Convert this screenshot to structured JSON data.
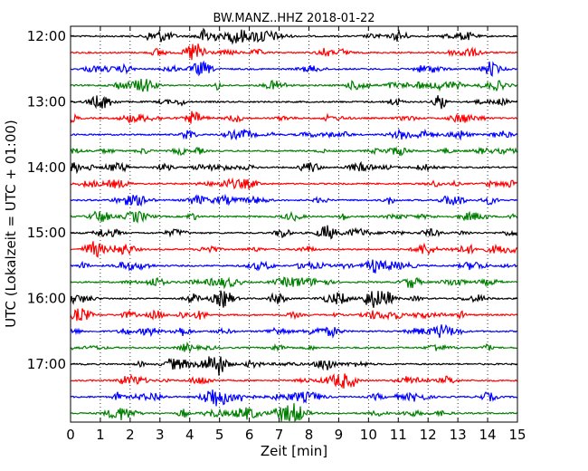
{
  "chart_data": {
    "type": "line",
    "title": "BW.MANZ..HHZ 2018-01-22",
    "xlabel": "Zeit  [min]",
    "ylabel": "UTC (Lokalzeit = UTC + 01:00)",
    "xlim": [
      0,
      15
    ],
    "x_ticks": [
      "0",
      "1",
      "2",
      "3",
      "4",
      "5",
      "6",
      "7",
      "8",
      "9",
      "10",
      "11",
      "12",
      "13",
      "14",
      "15"
    ],
    "y_ticks": [
      "12:00",
      "13:00",
      "14:00",
      "15:00",
      "16:00",
      "17:00"
    ],
    "grid": "vertical dotted",
    "trace_colors": [
      "#000000",
      "#ff0000",
      "#0000ff",
      "#008000"
    ],
    "trace_count": 24,
    "trace_interval_min": 15,
    "start_time": "12:00"
  }
}
